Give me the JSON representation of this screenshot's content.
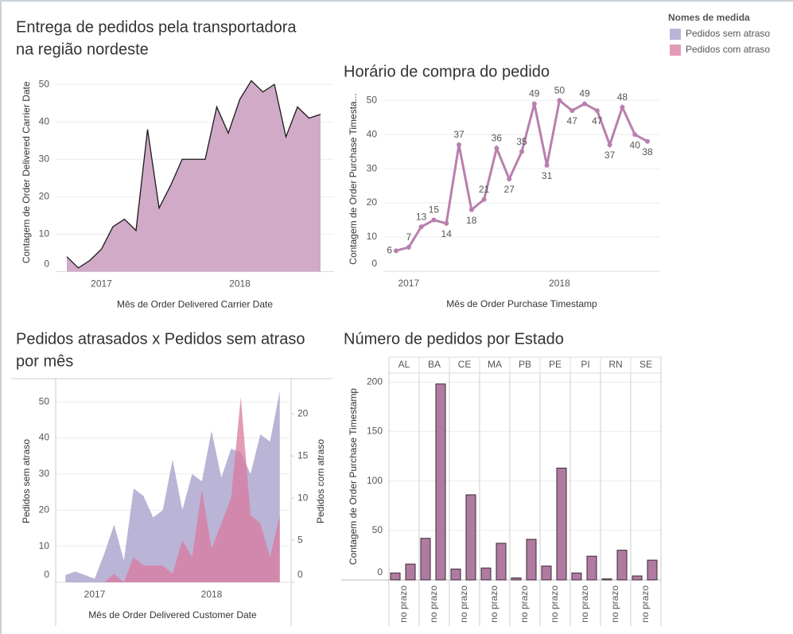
{
  "chart_data": [
    {
      "type": "area",
      "title": [
        "Entrega de pedidos pela transportadora",
        "na região nordeste"
      ],
      "x_label": "Mês de Order Delivered Carrier Date",
      "y_label": "Contagem de Order Delivered Carrier Date",
      "categories": [
        null,
        null,
        null,
        "2017",
        null,
        null,
        null,
        null,
        null,
        null,
        null,
        null,
        null,
        null,
        null,
        "2018",
        null,
        null,
        null,
        null,
        null,
        null,
        null
      ],
      "values": [
        4,
        1,
        3,
        6,
        12,
        14,
        11,
        38,
        17,
        23,
        30,
        30,
        30,
        44,
        37,
        46,
        51,
        48,
        50,
        36,
        44,
        41,
        42
      ],
      "color": "#d0aac7",
      "line_color": "#1a1a1a",
      "ylim": [
        0,
        53
      ],
      "yticks": [
        0,
        10,
        20,
        30,
        40,
        50
      ],
      "grid": true
    },
    {
      "type": "line",
      "title": [
        "Horário de compra do pedido"
      ],
      "x_label": "Mês de Order Purchase Timestamp",
      "y_label": "Contagem de Order Purchase Timesta...",
      "categories": [
        null,
        "2017",
        null,
        null,
        null,
        null,
        null,
        null,
        null,
        null,
        null,
        null,
        null,
        "2018",
        null,
        null,
        null,
        null,
        null,
        null,
        null
      ],
      "values": [
        6,
        7,
        13,
        15,
        14,
        37,
        18,
        21,
        36,
        27,
        35,
        49,
        31,
        50,
        47,
        49,
        47,
        37,
        48,
        40,
        38
      ],
      "color": "#b97fae",
      "ylim": [
        0,
        54
      ],
      "yticks": [
        0,
        10,
        20,
        30,
        40,
        50
      ],
      "grid": true
    },
    {
      "type": "area",
      "title": [
        "Pedidos atrasados x Pedidos sem atraso",
        "por mês"
      ],
      "x_label": "Mês de Order Delivered Customer Date",
      "y_label": "Pedidos sem atraso",
      "y2_label": "Pedidos com atraso",
      "legend_title": "Nomes de medida",
      "categories": [
        null,
        null,
        null,
        "2017",
        null,
        null,
        null,
        null,
        null,
        null,
        null,
        null,
        null,
        null,
        null,
        "2018",
        null,
        null,
        null,
        null,
        null,
        null,
        null
      ],
      "series": [
        {
          "name": "Pedidos sem atraso",
          "color": "#a39bca",
          "values": [
            2,
            3,
            2,
            1,
            8,
            16,
            6,
            26,
            24,
            18,
            20,
            34,
            20,
            30,
            28,
            42,
            29,
            37,
            36,
            30,
            41,
            39,
            53
          ]
        },
        {
          "name": "Pedidos com atraso",
          "color": "#d9799f",
          "axis": "y2",
          "values": [
            null,
            null,
            null,
            null,
            0,
            1,
            0,
            3,
            2,
            2,
            2,
            1,
            5,
            3,
            11,
            4,
            7,
            10,
            22,
            8,
            7,
            3,
            8
          ]
        }
      ],
      "ylim": [
        0,
        56
      ],
      "yticks": [
        0,
        10,
        20,
        30,
        40,
        50
      ],
      "y2lim": [
        0,
        24
      ],
      "y2ticks": [
        0,
        5,
        10,
        15,
        20
      ],
      "grid": true
    },
    {
      "type": "bar",
      "title": [
        "Número de pedidos por Estado"
      ],
      "y_label": "Contagem de Order Purchase Timestamp",
      "x_label": "no prazo",
      "facets": [
        {
          "name": "AL",
          "values": [
            7,
            16
          ]
        },
        {
          "name": "BA",
          "values": [
            42,
            198
          ]
        },
        {
          "name": "CE",
          "values": [
            11,
            86
          ]
        },
        {
          "name": "MA",
          "values": [
            12,
            37
          ]
        },
        {
          "name": "PB",
          "values": [
            2,
            41
          ]
        },
        {
          "name": "PE",
          "values": [
            14,
            113
          ]
        },
        {
          "name": "PI",
          "values": [
            7,
            24
          ]
        },
        {
          "name": "RN",
          "values": [
            1,
            30
          ]
        },
        {
          "name": "SE",
          "values": [
            4,
            20
          ]
        }
      ],
      "color": "#b07aa1",
      "ylim": [
        0,
        209
      ],
      "yticks": [
        0,
        50,
        100,
        150,
        200
      ],
      "grid": true
    }
  ]
}
